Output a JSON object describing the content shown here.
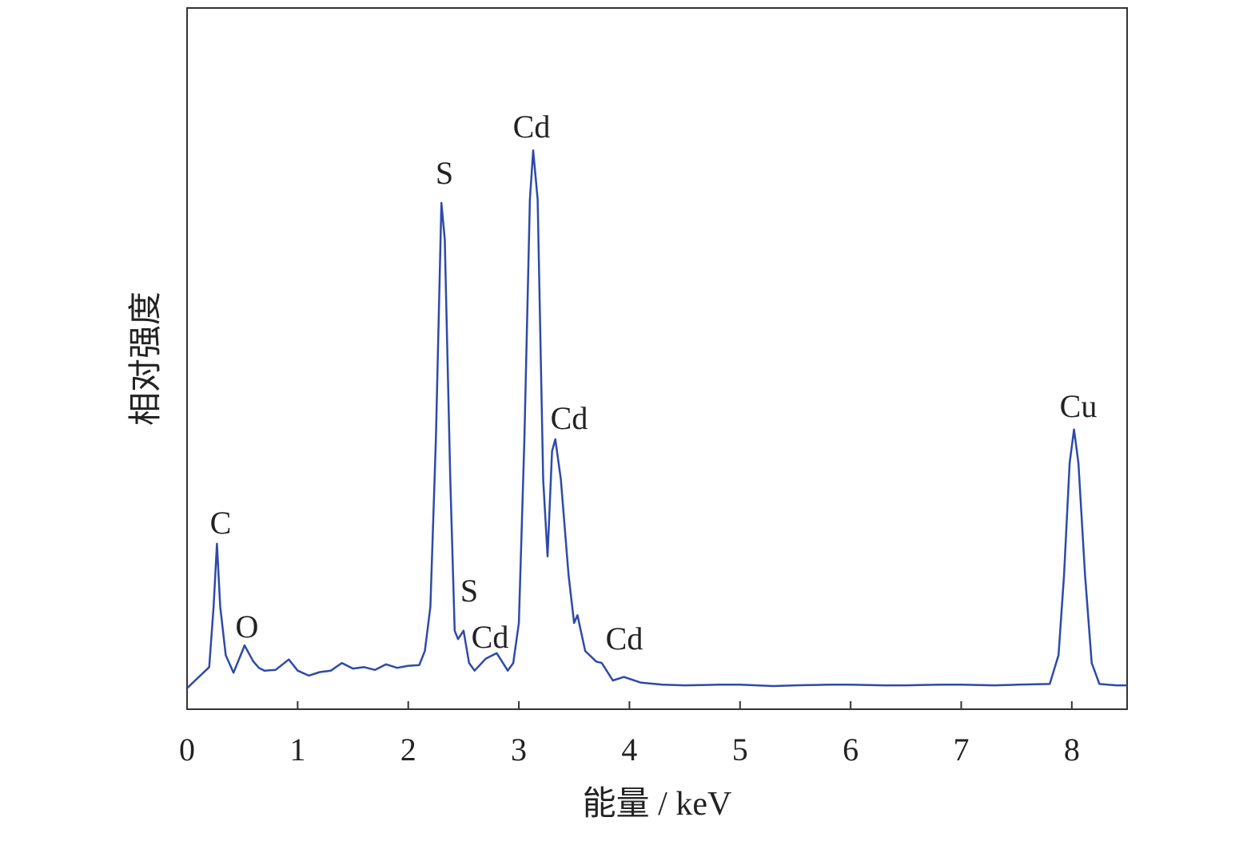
{
  "chart_data": {
    "type": "line",
    "xlabel": "能量 / keV",
    "ylabel": "相对强度",
    "xlim": [
      0,
      8.5
    ],
    "ylim": [
      0,
      100
    ],
    "xticks": [
      0,
      1,
      2,
      3,
      4,
      5,
      6,
      7,
      8
    ],
    "annotations": [
      "C",
      "O",
      "S",
      "S",
      "Cd",
      "Cd",
      "Cd",
      "Cd",
      "Cu"
    ],
    "series": [
      {
        "color": "#2e4aa8",
        "x": [
          0,
          0.1,
          0.2,
          0.24,
          0.27,
          0.3,
          0.35,
          0.42,
          0.5,
          0.52,
          0.6,
          0.65,
          0.7,
          0.8,
          0.92,
          1.0,
          1.1,
          1.2,
          1.3,
          1.4,
          1.5,
          1.6,
          1.7,
          1.8,
          1.9,
          2.0,
          2.1,
          2.15,
          2.2,
          2.25,
          2.3,
          2.33,
          2.38,
          2.42,
          2.45,
          2.5,
          2.55,
          2.6,
          2.7,
          2.8,
          2.9,
          2.95,
          3.0,
          3.05,
          3.1,
          3.13,
          3.17,
          3.22,
          3.26,
          3.3,
          3.33,
          3.38,
          3.45,
          3.5,
          3.53,
          3.6,
          3.7,
          3.75,
          3.85,
          3.95,
          4.1,
          4.3,
          4.5,
          4.8,
          5.0,
          5.3,
          5.5,
          5.8,
          6.0,
          6.3,
          6.5,
          6.8,
          7.0,
          7.3,
          7.5,
          7.8,
          7.88,
          7.93,
          7.98,
          8.02,
          8.06,
          8.12,
          8.18,
          8.25,
          8.4,
          8.5
        ],
        "values": [
          3.0,
          4.5,
          6.0,
          14.6,
          23.6,
          14.6,
          7.7,
          5.2,
          8.3,
          9.1,
          6.8,
          5.9,
          5.5,
          5.6,
          7.1,
          5.5,
          4.8,
          5.3,
          5.5,
          6.6,
          5.8,
          6.0,
          5.6,
          6.4,
          5.9,
          6.2,
          6.3,
          8.3,
          14.6,
          38.5,
          72.2,
          67.0,
          32.8,
          11.2,
          10.0,
          11.2,
          6.6,
          5.5,
          7.2,
          8.0,
          5.5,
          6.6,
          12.3,
          38.5,
          72.7,
          79.7,
          72.7,
          32.8,
          21.8,
          36.8,
          38.5,
          32.8,
          19.1,
          12.3,
          13.4,
          8.3,
          6.8,
          6.6,
          4.1,
          4.6,
          3.8,
          3.5,
          3.4,
          3.5,
          3.5,
          3.3,
          3.4,
          3.5,
          3.5,
          3.4,
          3.4,
          3.5,
          3.5,
          3.4,
          3.5,
          3.6,
          7.7,
          19.1,
          35.1,
          39.9,
          35.1,
          19.1,
          6.6,
          3.6,
          3.4,
          3.4
        ]
      }
    ]
  }
}
